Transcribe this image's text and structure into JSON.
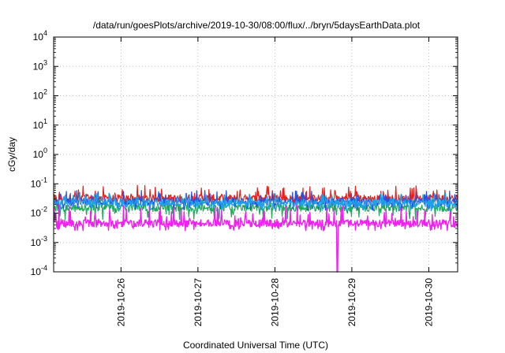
{
  "chart_data": {
    "type": "line",
    "title": "/data/run/goesPlots/archive/2019-10-30/08:00/flux/../bryn/5daysEarthData.plot",
    "xlabel": "Coordinated Universal Time (UTC)",
    "ylabel": "cGy/day",
    "yscale": "log",
    "ylim": [
      0.0001,
      10000
    ],
    "y_ticks": [
      {
        "value": 0.0001,
        "base": "10",
        "exp": "-4"
      },
      {
        "value": 0.001,
        "base": "10",
        "exp": "-3"
      },
      {
        "value": 0.01,
        "base": "10",
        "exp": "-2"
      },
      {
        "value": 0.1,
        "base": "10",
        "exp": "-1"
      },
      {
        "value": 1,
        "base": "10",
        "exp": "0"
      },
      {
        "value": 10,
        "base": "10",
        "exp": "1"
      },
      {
        "value": 100,
        "base": "10",
        "exp": "2"
      },
      {
        "value": 1000,
        "base": "10",
        "exp": "3"
      },
      {
        "value": 10000,
        "base": "10",
        "exp": "4"
      }
    ],
    "xlim": [
      "2019-10-25T03:00",
      "2019-10-30T09:00"
    ],
    "x_ticks": [
      "2019-10-26",
      "2019-10-27",
      "2019-10-28",
      "2019-10-29",
      "2019-10-30"
    ],
    "grid": true,
    "series": [
      {
        "color": "#e8201c",
        "typical": 0.032,
        "spike_max": 0.09,
        "dip_min": 0.02
      },
      {
        "color": "#1fa85a",
        "typical": 0.015,
        "spike_max": 0.03,
        "dip_min": 0.006
      },
      {
        "color": "#2850e0",
        "typical": 0.025,
        "spike_max": 0.06,
        "dip_min": 0.012
      },
      {
        "color": "#1ea0e8",
        "typical": 0.022,
        "spike_max": 0.05,
        "dip_min": 0.012
      },
      {
        "color": "#f020f0",
        "typical": 0.0045,
        "spike_max": 0.02,
        "dip_min": 0.0025,
        "drop": {
          "x": "2019-10-28T19:30",
          "min": 0.0001
        }
      }
    ]
  }
}
